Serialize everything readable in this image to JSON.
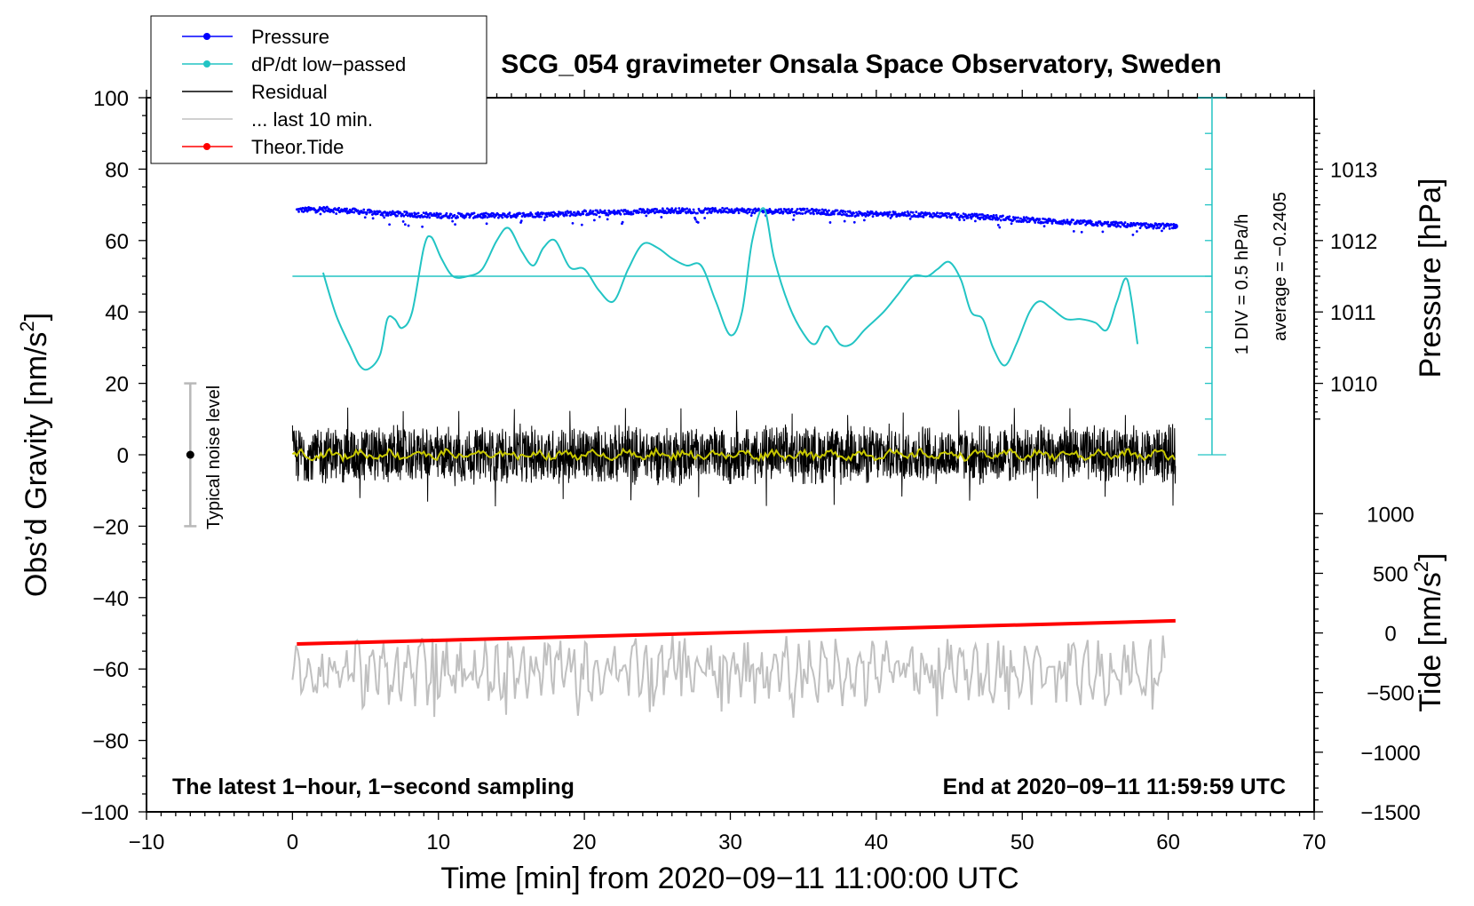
{
  "chart_data": {
    "type": "line",
    "title": "SCG_054 gravimeter Onsala Space Observatory, Sweden",
    "xlabel": "Time [min] from 2020−09−11 11:00:00 UTC",
    "ylabel_left": "Obs’d Gravity [nm/s",
    "ylabel_left_sup": "2",
    "ylabel_left_end": "]",
    "ylabel_right_pressure": "Pressure [hPa]",
    "ylabel_right_tide": "Tide [nm/s",
    "ylabel_right_tide_sup": "2",
    "ylabel_right_tide_end": "]",
    "xlim": [
      -10,
      70
    ],
    "ylim_left": [
      -100,
      100
    ],
    "xticks": [
      -10,
      0,
      10,
      20,
      30,
      40,
      50,
      60,
      70
    ],
    "xtick_labels": [
      "−10",
      "0",
      "10",
      "20",
      "30",
      "40",
      "50",
      "60",
      "70"
    ],
    "yticks_left": [
      -100,
      -80,
      -60,
      -40,
      -20,
      0,
      20,
      40,
      60,
      80,
      100
    ],
    "ytick_labels_left": [
      "−100",
      "−80",
      "−60",
      "−40",
      "−20",
      "0",
      "20",
      "40",
      "60",
      "80",
      "100"
    ],
    "pressure_ticks": [
      1010,
      1011,
      1012,
      1013
    ],
    "pressure_tick_labels": [
      "1010",
      "1011",
      "1012",
      "1013"
    ],
    "pressure_axis": {
      "value_a": 1010,
      "gravity_a": 20,
      "value_b": 1013,
      "gravity_b": 80
    },
    "tide_ticks": [
      -1500,
      -1000,
      -500,
      0,
      500,
      1000
    ],
    "tide_tick_labels": [
      "−1500",
      "−1000",
      "−500",
      "0",
      "500",
      "1000"
    ],
    "tide_axis": {
      "value_a": -1500,
      "gravity_a": -100,
      "value_b": 1000,
      "gravity_b": -16.5
    },
    "notes": {
      "bottom_left": "The latest 1−hour, 1−second sampling",
      "bottom_right": "End at 2020−09−11 11:59:59 UTC",
      "noise_label": "Typical noise level",
      "dpdt_scale": "1 DIV = 0.5 hPa/h",
      "dpdt_average": "average = −0.2405"
    },
    "noise_bar": {
      "x": -7,
      "center": 0,
      "low": -20,
      "high": 20
    },
    "legend": [
      {
        "label": "Pressure",
        "color": "#0000ff",
        "marker": true
      },
      {
        "label": "dP/dt low−passed",
        "color": "#22c4c4",
        "marker": true
      },
      {
        "label": "Residual",
        "color": "#000000",
        "marker": false
      },
      {
        "label": "... last 10 min.",
        "color": "#c0c0c0",
        "marker": false
      },
      {
        "label": "Theor.Tide",
        "color": "#ff0000",
        "marker": true
      }
    ],
    "series": [
      {
        "name": "Pressure",
        "color": "#0000ff",
        "style": "dots",
        "x": [
          0.3,
          2,
          4,
          6,
          8,
          10,
          12,
          14,
          16,
          18,
          20,
          22,
          24,
          26,
          28,
          30,
          32,
          34,
          36,
          38,
          40,
          42,
          44,
          46,
          48,
          50,
          52,
          54,
          56,
          58,
          60.5
        ],
        "y": [
          68.5,
          68.8,
          68.3,
          67.7,
          67.3,
          67.0,
          67.0,
          67.0,
          67.2,
          67.4,
          67.8,
          67.8,
          68.2,
          68.4,
          68.3,
          68.5,
          68.2,
          68.3,
          68.1,
          67.6,
          67.4,
          67.4,
          67.2,
          66.9,
          66.5,
          65.9,
          65.4,
          65.0,
          64.6,
          64.2,
          64.0
        ]
      },
      {
        "name": "dP/dt low−passed",
        "color": "#22c4c4",
        "style": "line",
        "x": [
          2.1,
          3.0,
          4.0,
          4.6,
          5.2,
          6.0,
          6.5,
          7.0,
          7.5,
          8.2,
          9.0,
          9.5,
          10.2,
          11.0,
          12.0,
          13.0,
          14.0,
          14.8,
          15.7,
          16.5,
          17.2,
          18.0,
          19.0,
          20.0,
          21.0,
          22.0,
          23.0,
          24.0,
          25.0,
          26.0,
          27.0,
          28.0,
          29.0,
          30.0,
          30.8,
          31.5,
          32.3,
          33.0,
          34.0,
          35.0,
          35.8,
          36.6,
          37.5,
          38.3,
          39.2,
          40.5,
          41.5,
          42.5,
          43.5,
          44.2,
          45.0,
          45.8,
          46.5,
          47.3,
          48.0,
          48.8,
          49.6,
          50.5,
          51.2,
          52.0,
          53.0,
          54.0,
          55.0,
          55.8,
          56.5,
          57.2,
          57.9
        ],
        "y": [
          51,
          39,
          30,
          25,
          24,
          28,
          38,
          38,
          35.5,
          40,
          58,
          61,
          55,
          50,
          50,
          52,
          60,
          63.5,
          57,
          53,
          58,
          60,
          52.5,
          52,
          46,
          43,
          52,
          59,
          58,
          55,
          53,
          53,
          43,
          33.5,
          40,
          60,
          69,
          55,
          42,
          34,
          31,
          36,
          31,
          31,
          35,
          40,
          45,
          50,
          50,
          52,
          54,
          49,
          40,
          38,
          30,
          25,
          31,
          40,
          43,
          41,
          38,
          38,
          37,
          35,
          43,
          49,
          31
        ]
      },
      {
        "name": "Residual",
        "color": "#000000",
        "style": "noise",
        "x": [
          0,
          60.5
        ],
        "y": [
          0,
          0
        ],
        "amplitude": 9,
        "peak_max": 13.5,
        "peak_min": -14.5
      },
      {
        "name": "... last 10 min.",
        "color": "#c0c0c0",
        "style": "noise",
        "x": [
          0,
          59.8
        ],
        "y": [
          -60.5,
          -60.5
        ],
        "amplitude": 6,
        "peak_max": -51.5,
        "peak_min": -74
      },
      {
        "name": "Theor.Tide",
        "color": "#ff0000",
        "style": "line",
        "x": [
          0.3,
          60.5
        ],
        "y": [
          -53,
          -46.5
        ]
      }
    ]
  }
}
